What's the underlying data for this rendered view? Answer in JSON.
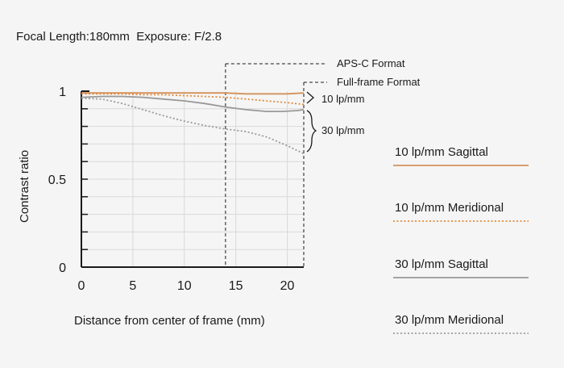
{
  "chart_data": {
    "type": "line",
    "title": "Focal Length:180mm  Exposure: F/2.8",
    "xlabel": "Distance from center of frame (mm)",
    "ylabel": "Contrast ratio",
    "xlim": [
      0,
      21.6
    ],
    "ylim": [
      0,
      1
    ],
    "xticks": [
      "0",
      "5",
      "10",
      "15",
      "20"
    ],
    "yticks": [
      "0",
      "0.5",
      "1"
    ],
    "grid": true,
    "series": [
      {
        "name": "10 lp/mm Sagittal",
        "color": "#d4915a",
        "dash": "solid",
        "x": [
          0,
          2,
          4,
          6,
          8,
          10,
          12,
          14,
          16,
          18,
          20,
          21.6
        ],
        "y": [
          0.99,
          0.99,
          0.99,
          0.99,
          0.99,
          0.99,
          0.99,
          0.99,
          0.985,
          0.985,
          0.985,
          0.99
        ]
      },
      {
        "name": "10 lp/mm Meridional",
        "color": "#e08a3c",
        "dash": "dotted",
        "x": [
          0,
          2,
          4,
          6,
          8,
          10,
          12,
          14,
          16,
          18,
          20,
          21.6
        ],
        "y": [
          0.985,
          0.985,
          0.985,
          0.98,
          0.98,
          0.975,
          0.97,
          0.965,
          0.955,
          0.945,
          0.935,
          0.925
        ]
      },
      {
        "name": "30 lp/mm Sagittal",
        "color": "#999999",
        "dash": "solid",
        "x": [
          0,
          2,
          4,
          6,
          8,
          10,
          12,
          14,
          16,
          18,
          19.5,
          21,
          21.6
        ],
        "y": [
          0.965,
          0.97,
          0.97,
          0.965,
          0.955,
          0.945,
          0.93,
          0.91,
          0.895,
          0.885,
          0.885,
          0.89,
          0.895
        ]
      },
      {
        "name": "30 lp/mm Meridional",
        "color": "#9a9a9a",
        "dash": "dotted",
        "x": [
          0,
          2,
          4,
          6,
          8,
          10,
          12,
          14,
          16,
          18,
          20,
          21.6
        ],
        "y": [
          0.96,
          0.955,
          0.93,
          0.895,
          0.86,
          0.83,
          0.805,
          0.785,
          0.77,
          0.74,
          0.69,
          0.645
        ]
      }
    ],
    "annotations": {
      "apsc": {
        "label": "APS-C Format",
        "x": 14
      },
      "fullframe": {
        "label": "Full-frame Format",
        "x": 21.6
      },
      "brace10": "10 lp/mm",
      "brace30": "30 lp/mm"
    },
    "legend_placement": "right"
  }
}
